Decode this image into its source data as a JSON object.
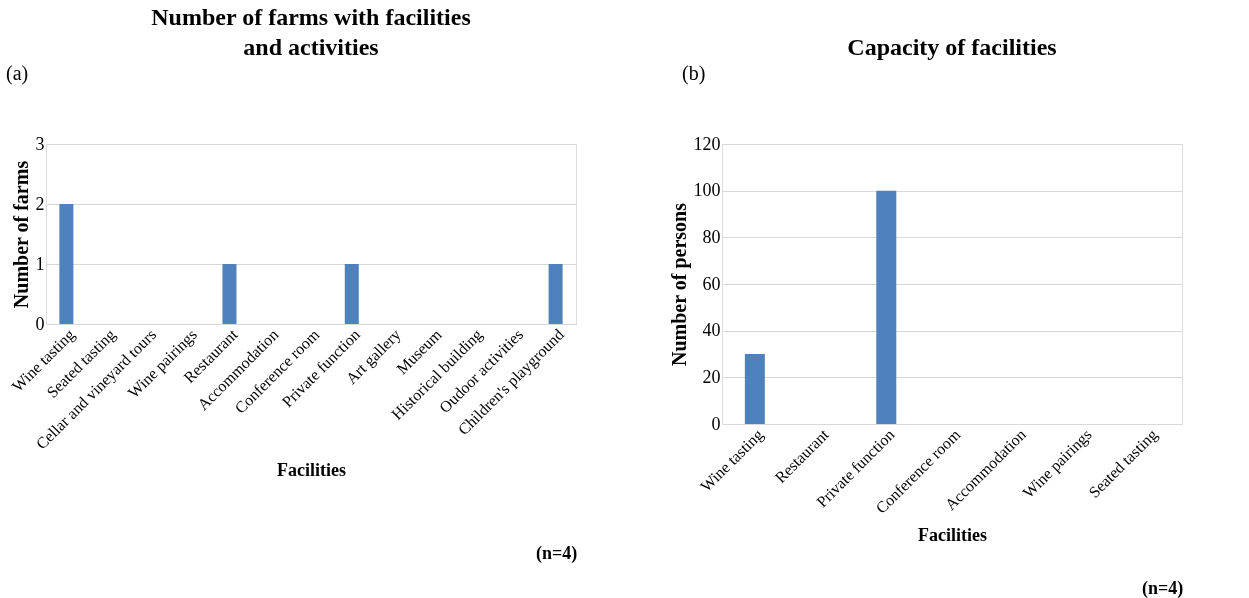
{
  "chart_data": [
    {
      "type": "bar",
      "title": "Number of farms with facilities\nand activities",
      "xlabel": "Facilities",
      "ylabel": "Number of farms",
      "categories": [
        "Wine tasting",
        "Seated tasting",
        "Cellar and vineyard tours",
        "Wine pairings",
        "Restaurant",
        "Accommodation",
        "Conference room",
        "Private function",
        "Art gallery",
        "Museum",
        "Historical building",
        "Oudoor activities",
        "Children's playground"
      ],
      "values": [
        2,
        0,
        0,
        0,
        1,
        0,
        0,
        1,
        0,
        0,
        0,
        0,
        1
      ],
      "color": "#4f81bd",
      "ylim": [
        0,
        3
      ],
      "yticks": [
        0,
        1,
        2,
        3
      ],
      "grid": "y",
      "annotations": [
        "(a)",
        "(n=4)"
      ]
    },
    {
      "type": "bar",
      "title": "Capacity of facilities",
      "xlabel": "Facilities",
      "ylabel": "Number of persons",
      "categories": [
        "Wine tasting",
        "Restaurant",
        "Private function",
        "Conference room",
        "Accommodation",
        "Wine pairings",
        "Seated tasting"
      ],
      "values": [
        30,
        0,
        100,
        0,
        0,
        0,
        0
      ],
      "color": "#4f81bd",
      "ylim": [
        0,
        120
      ],
      "yticks": [
        0,
        20,
        40,
        60,
        80,
        100,
        120
      ],
      "grid": "y",
      "annotations": [
        "(b)",
        "(n=4)"
      ]
    }
  ]
}
